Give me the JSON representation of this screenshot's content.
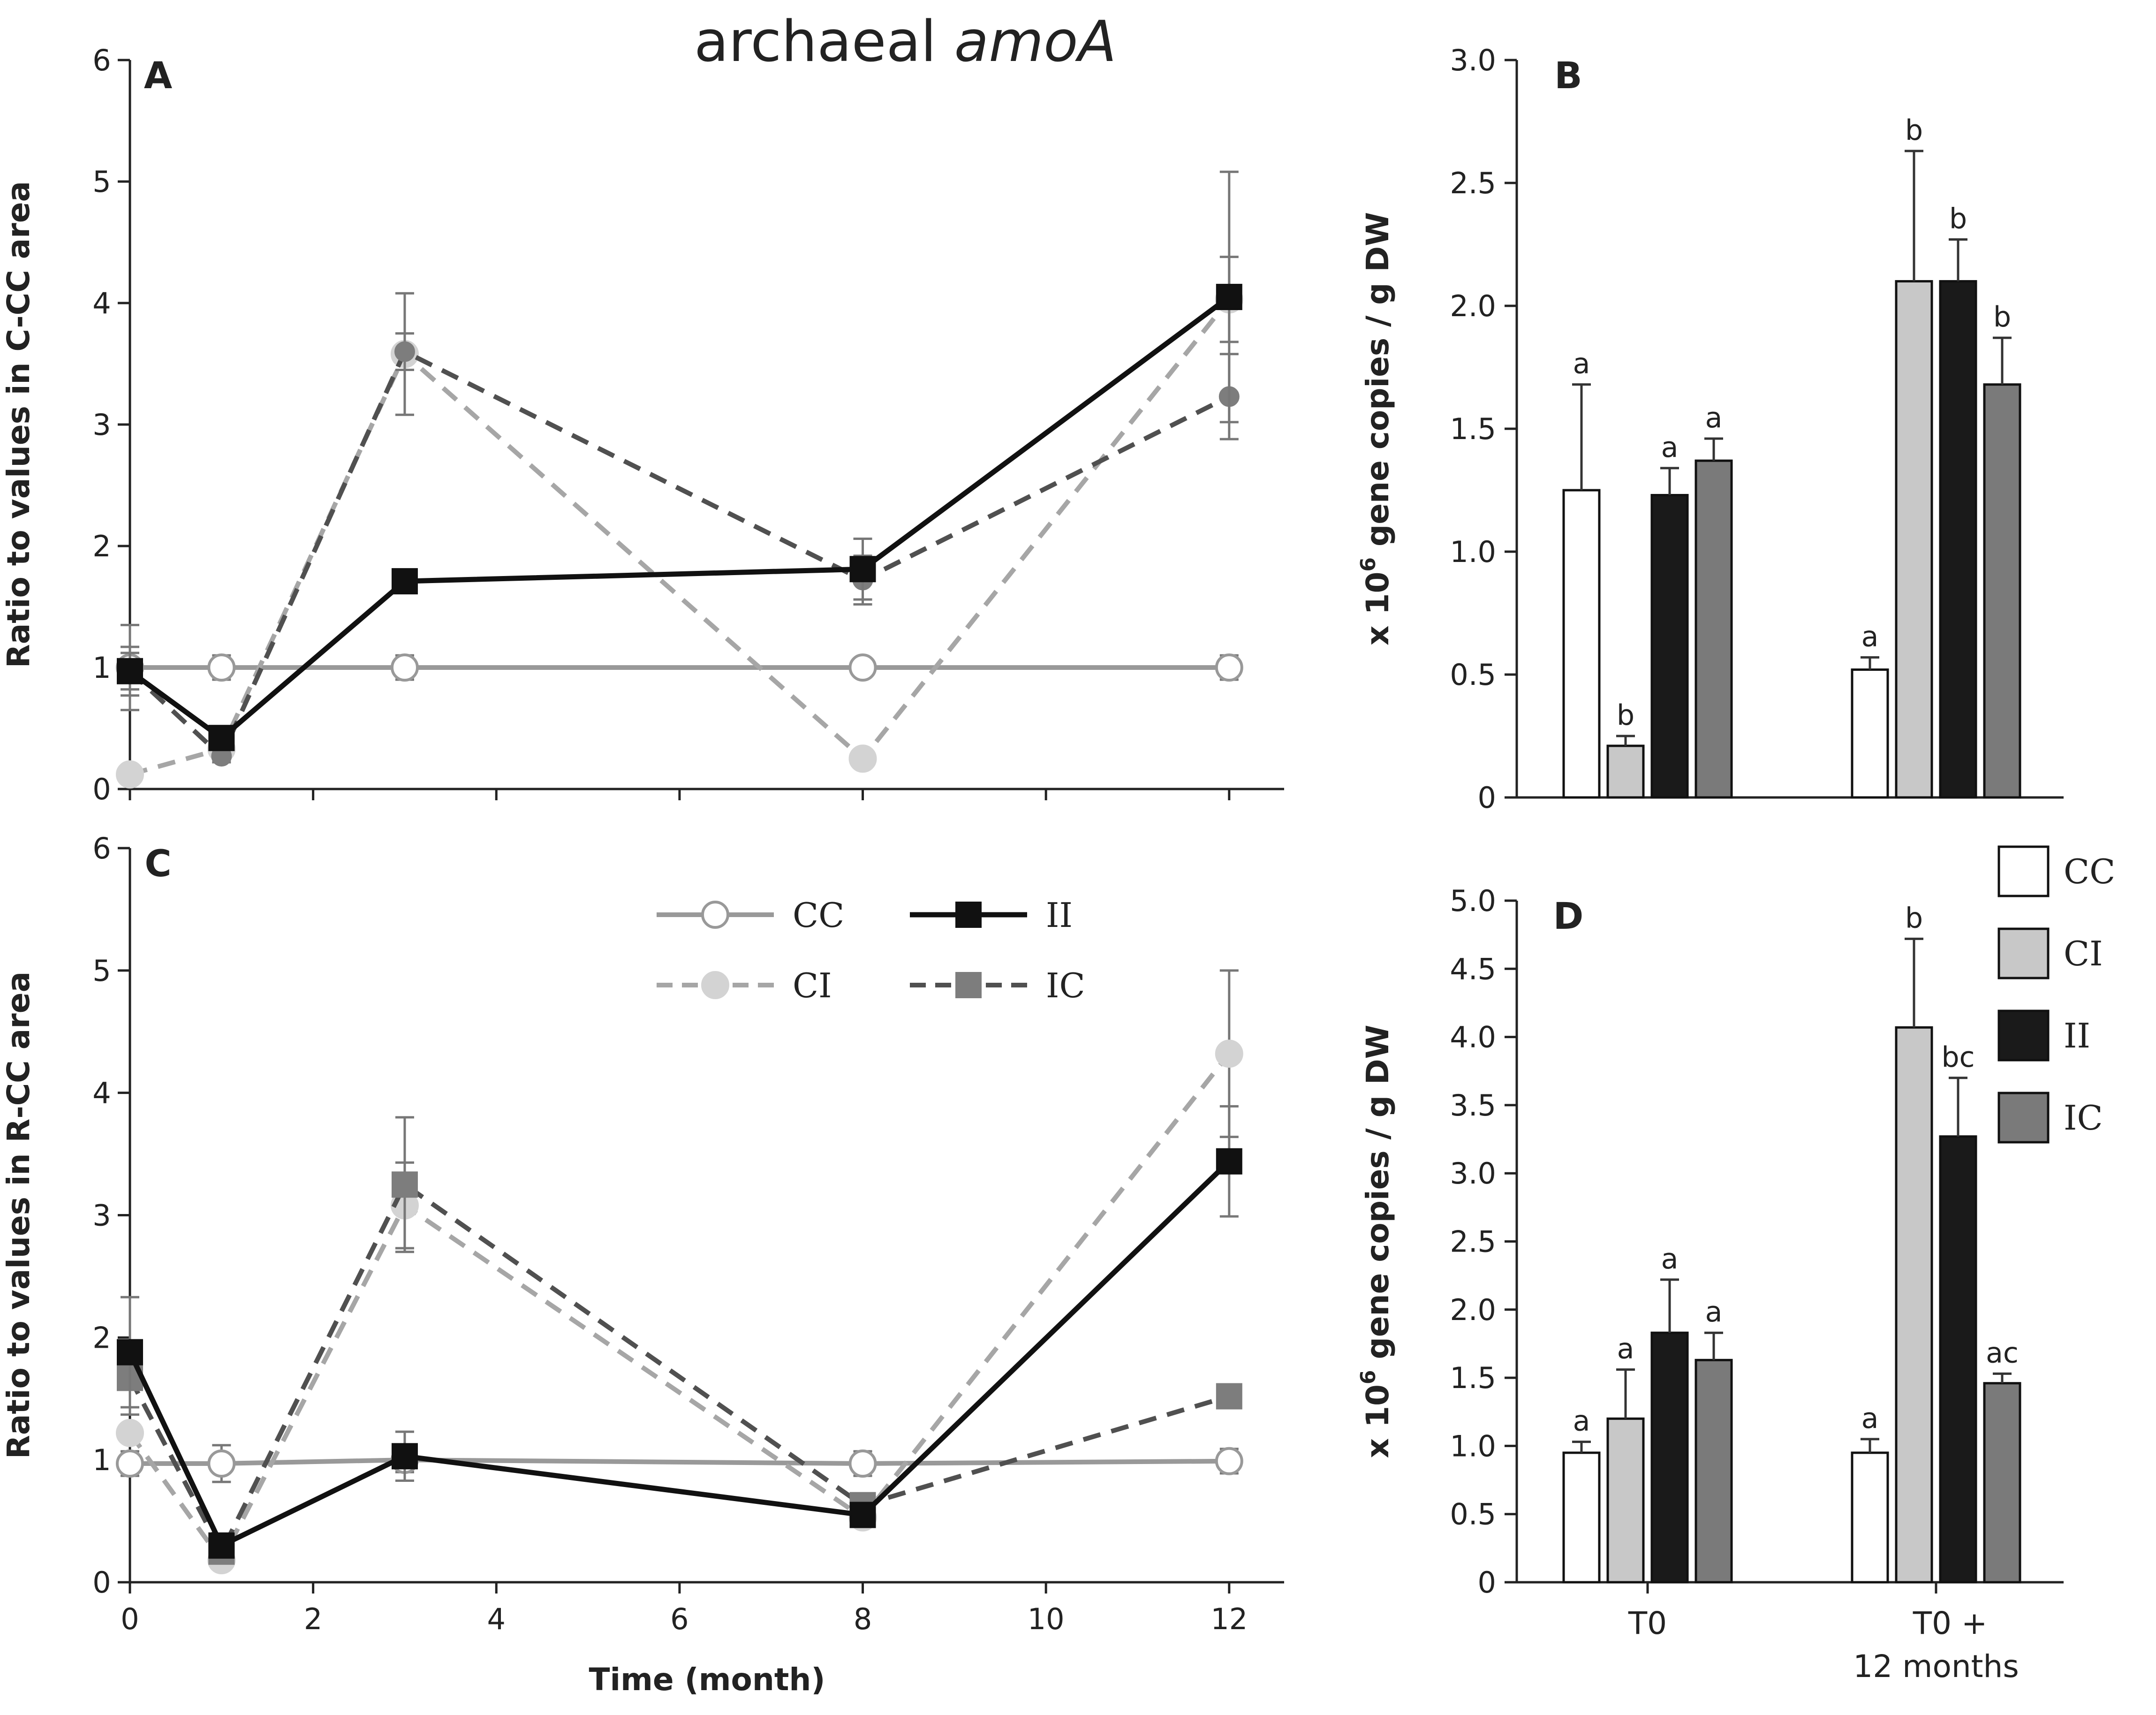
{
  "title": {
    "prefix": "archaeal ",
    "gene": "amoA"
  },
  "colors": {
    "CC": "#ffffff",
    "CI": "#c8c8c8",
    "II": "#1a1a1a",
    "IC": "#7a7a7a",
    "axis": "#222222",
    "err": "#555555"
  },
  "chart_data": [
    {
      "id": "A",
      "type": "line",
      "panel": "A",
      "ylabel_parts": [
        "Ratio  to values in  ",
        "C-CC area"
      ],
      "xlabel": "",
      "xlim": [
        0,
        12.6
      ],
      "ylim": [
        0,
        6
      ],
      "xticks": [
        "0",
        "2",
        "4",
        "6",
        "8",
        "10",
        "12"
      ],
      "show_xtick_labels": false,
      "yticks": [
        "0",
        "1",
        "2",
        "3",
        "4",
        "5",
        "6"
      ],
      "x": [
        0,
        1,
        3,
        8,
        12
      ],
      "series": [
        {
          "name": "CC",
          "values": [
            1.0,
            1.0,
            1.0,
            1.0,
            1.0
          ],
          "err": [
            0.35,
            0.1,
            0.1,
            0.05,
            0.1
          ]
        },
        {
          "name": "CI",
          "values": [
            0.12,
            0.33,
            3.58,
            0.25,
            4.03
          ],
          "err": [
            0,
            0,
            0.5,
            0,
            0.35
          ]
        },
        {
          "name": "II",
          "values": [
            0.97,
            0.42,
            1.71,
            1.81,
            4.05
          ],
          "err": [
            0.2,
            0.05,
            0.08,
            0.25,
            1.03
          ]
        },
        {
          "name": "IC",
          "values": [
            0.97,
            0.27,
            3.6,
            1.72,
            3.23
          ],
          "err": [
            0.15,
            0.05,
            0.15,
            0.2,
            0.35
          ]
        }
      ]
    },
    {
      "id": "C",
      "type": "line",
      "panel": "C",
      "ylabel_parts": [
        "Ratio  to values in  ",
        "R-CC area"
      ],
      "xlabel": "Time (month)",
      "xlim": [
        0,
        12.6
      ],
      "ylim": [
        0,
        6
      ],
      "xticks": [
        "0",
        "2",
        "4",
        "6",
        "8",
        "10",
        "12"
      ],
      "show_xtick_labels": true,
      "yticks": [
        "0",
        "1",
        "2",
        "3",
        "4",
        "5",
        "6"
      ],
      "x": [
        0,
        1,
        3,
        8,
        12
      ],
      "series": [
        {
          "name": "CC",
          "values": [
            0.97,
            0.97,
            1.0,
            0.97,
            0.99
          ],
          "err": [
            0.1,
            0.15,
            0.1,
            0.1,
            0.1
          ]
        },
        {
          "name": "CI",
          "values": [
            1.22,
            0.18,
            3.08,
            0.53,
            4.32
          ],
          "err": [
            0,
            0,
            0.35,
            0,
            0.68
          ]
        },
        {
          "name": "II",
          "values": [
            1.88,
            0.3,
            1.03,
            0.55,
            3.44
          ],
          "err": [
            0.45,
            0.05,
            0.2,
            0.05,
            0.45
          ]
        },
        {
          "name": "IC",
          "values": [
            1.67,
            0.25,
            3.25,
            0.63,
            1.52
          ],
          "err": [
            0.3,
            0.05,
            0.55,
            0.05,
            0.08
          ]
        }
      ]
    },
    {
      "id": "B",
      "type": "bar",
      "panel": "B",
      "ylabel_parts": [
        "x 10",
        "6",
        " gene copies / g DW"
      ],
      "ylim": [
        0,
        3.0
      ],
      "yticks": [
        "0",
        "0.5",
        "1.0",
        "1.5",
        "2.0",
        "2.5",
        "3.0"
      ],
      "categories": [],
      "show_categories": false,
      "groups": [
        {
          "values": [
            1.25,
            0.21,
            1.23,
            1.37
          ],
          "err": [
            0.43,
            0.04,
            0.11,
            0.09
          ],
          "letters": [
            "a",
            "b",
            "a",
            "a"
          ]
        },
        {
          "values": [
            0.52,
            2.1,
            2.1,
            1.68
          ],
          "err": [
            0.05,
            0.53,
            0.17,
            0.19
          ],
          "letters": [
            "a",
            "b",
            "b",
            "b"
          ]
        }
      ]
    },
    {
      "id": "D",
      "type": "bar",
      "panel": "D",
      "ylabel_parts": [
        "x 10",
        "6",
        " gene copies / g DW"
      ],
      "ylim": [
        0,
        5.0
      ],
      "yticks": [
        "0",
        "0.5",
        "1.0",
        "1.5",
        "2.0",
        "2.5",
        "3.0",
        "3.5",
        "4.0",
        "4.5",
        "5.0"
      ],
      "categories": [
        [
          "T0"
        ],
        [
          "T0 +",
          "12 months"
        ]
      ],
      "show_categories": true,
      "groups": [
        {
          "values": [
            0.95,
            1.2,
            1.83,
            1.63
          ],
          "err": [
            0.08,
            0.36,
            0.39,
            0.2
          ],
          "letters": [
            "a",
            "a",
            "a",
            "a"
          ]
        },
        {
          "values": [
            0.95,
            4.07,
            3.27,
            1.46
          ],
          "err": [
            0.1,
            0.65,
            0.43,
            0.07
          ],
          "letters": [
            "a",
            "b",
            "bc",
            "ac"
          ]
        }
      ]
    }
  ],
  "line_legend": [
    "CC",
    "II",
    "CI",
    "IC"
  ],
  "bar_legend": [
    "CC",
    "CI",
    "II",
    "IC"
  ]
}
